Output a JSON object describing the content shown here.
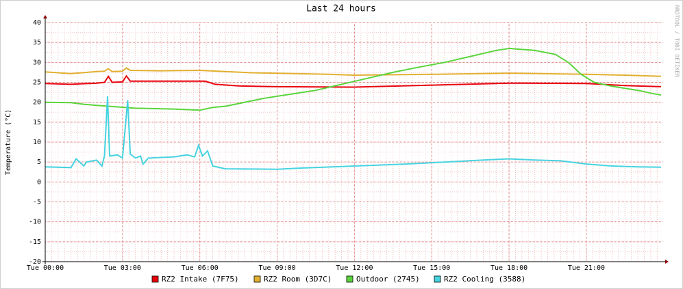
{
  "chart_data": {
    "type": "line",
    "title": "Last 24 hours",
    "y_label": "Temperature (°C)",
    "watermark": "RRDTOOL / TOBI OETIKER",
    "xlim": [
      0,
      23.9
    ],
    "xticks": [
      {
        "value": 0,
        "label": "Tue 00:00"
      },
      {
        "value": 3,
        "label": "Tue 03:00"
      },
      {
        "value": 6,
        "label": "Tue 06:00"
      },
      {
        "value": 9,
        "label": "Tue 09:00"
      },
      {
        "value": 12,
        "label": "Tue 12:00"
      },
      {
        "value": 15,
        "label": "Tue 15:00"
      },
      {
        "value": 18,
        "label": "Tue 18:00"
      },
      {
        "value": 21,
        "label": "Tue 21:00"
      }
    ],
    "ylim": [
      -20,
      40
    ],
    "yticks": [
      -20,
      -15,
      -10,
      -5,
      0,
      5,
      10,
      15,
      20,
      25,
      30,
      35,
      40
    ],
    "grid": true,
    "series": [
      {
        "name": "RZ2 Intake (7F75)",
        "color": "#e8000b",
        "x": [
          0,
          1,
          2,
          2.3,
          2.45,
          2.6,
          3.0,
          3.15,
          3.3,
          4.5,
          6.2,
          6.6,
          7.5,
          9,
          12,
          15,
          18,
          21,
          22.5,
          23.9
        ],
        "values": [
          24.7,
          24.5,
          24.8,
          25,
          26.5,
          25,
          25.1,
          26.6,
          25.3,
          25.3,
          25.3,
          24.5,
          24.1,
          23.9,
          23.8,
          24.3,
          24.8,
          24.7,
          24.2,
          23.9
        ]
      },
      {
        "name": "RZ2 Room (3D7C)",
        "color": "#e2b030",
        "x": [
          0,
          1,
          2,
          2.3,
          2.45,
          2.6,
          3.0,
          3.15,
          3.3,
          4.5,
          6,
          8,
          11,
          12,
          15,
          18,
          21,
          22.5,
          23.9
        ],
        "values": [
          27.6,
          27.2,
          27.7,
          27.8,
          28.4,
          27.7,
          27.8,
          28.6,
          28.0,
          27.9,
          28.0,
          27.4,
          27.0,
          26.8,
          27.0,
          27.3,
          27.0,
          26.8,
          26.5
        ]
      },
      {
        "name": "Outdoor (2745)",
        "color": "#5ad43c",
        "x": [
          0,
          1,
          1.5,
          2,
          3.5,
          5,
          6,
          6.5,
          7,
          8.5,
          9.5,
          10.5,
          11.5,
          12.5,
          13.5,
          14.5,
          15.5,
          16.5,
          17.5,
          18,
          19,
          19.8,
          20.3,
          20.8,
          21.3,
          22,
          23,
          23.5,
          23.9
        ],
        "values": [
          20,
          19.9,
          19.5,
          19.2,
          18.5,
          18.3,
          18,
          18.7,
          19,
          21,
          22,
          23,
          24.5,
          26,
          27.5,
          28.8,
          30,
          31.5,
          33,
          33.5,
          33,
          32,
          30,
          27,
          25,
          24,
          23,
          22.3,
          21.8
        ]
      },
      {
        "name": "RZ2 Cooling (3588)",
        "color": "#46d3e0",
        "x": [
          0,
          1,
          1.2,
          1.5,
          1.6,
          2,
          2.2,
          2.3,
          2.42,
          2.5,
          2.8,
          3.0,
          3.2,
          3.3,
          3.5,
          3.7,
          3.8,
          4.0,
          5.0,
          5.5,
          5.8,
          5.95,
          6.1,
          6.3,
          6.5,
          7,
          9,
          10,
          12,
          14,
          15.5,
          17,
          18,
          19,
          20,
          21,
          22,
          23,
          23.9
        ],
        "values": [
          3.8,
          3.6,
          5.8,
          4,
          5,
          5.5,
          4,
          6.5,
          21.5,
          6.5,
          6.8,
          6,
          20.5,
          7,
          6,
          6.5,
          4.5,
          6,
          6.3,
          6.8,
          6.3,
          9.2,
          6.5,
          7.8,
          4,
          3.3,
          3.2,
          3.5,
          4,
          4.5,
          5,
          5.5,
          5.8,
          5.5,
          5.3,
          4.5,
          4,
          3.8,
          3.7
        ]
      }
    ]
  }
}
